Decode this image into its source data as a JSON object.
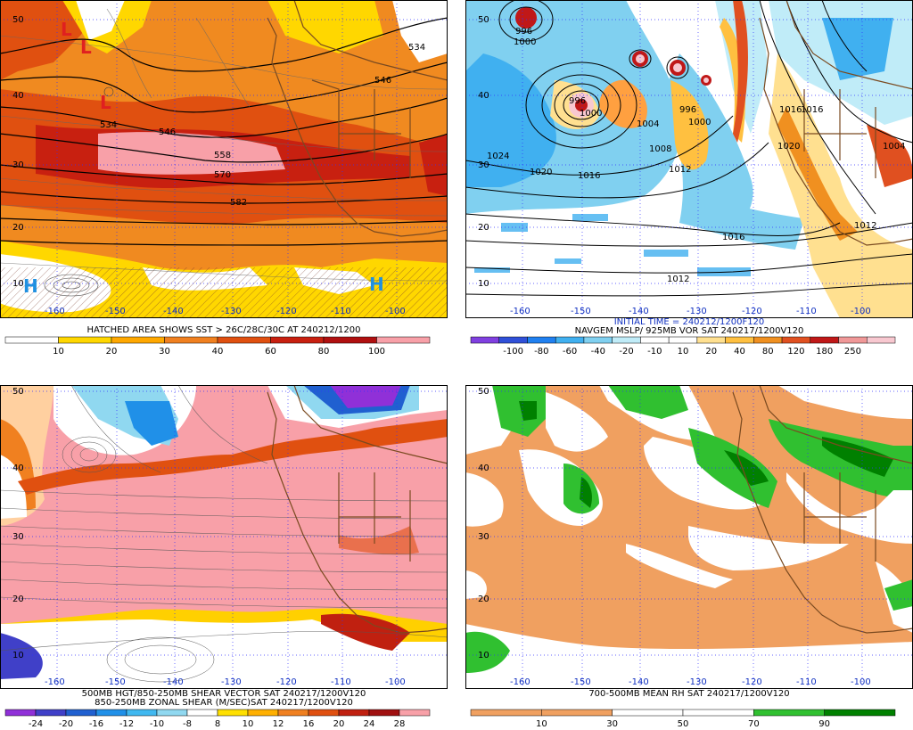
{
  "panels": [
    {
      "id": "tl",
      "caption_lines": [
        "HATCHED AREA SHOWS SST > 26C/28C/30C AT 240212/1200"
      ],
      "colorbar": {
        "colors": [
          "#ffffff",
          "#ffd700",
          "#ffa800",
          "#f08020",
          "#e05010",
          "#c82010",
          "#b01010",
          "#f8a0a8"
        ],
        "labels": [
          "10",
          "20",
          "30",
          "40",
          "60",
          "80",
          "100"
        ]
      },
      "contour_labels": [
        "534",
        "546",
        "534",
        "546",
        "558",
        "570",
        "582"
      ],
      "pressure_centers": [
        "L",
        "L",
        "L",
        "H",
        "H"
      ],
      "lat_labels": [
        "50",
        "40",
        "30",
        "20",
        "10"
      ],
      "lon_labels": [
        "-160",
        "-150",
        "-140",
        "-130",
        "-120",
        "-110",
        "-100"
      ]
    },
    {
      "id": "tr",
      "caption_lines": [
        "INITIAL TIME = 240212/1200F120",
        "NAVGEM MSLP/ 925MB VOR SAT 240217/1200V120"
      ],
      "colorbar": {
        "colors": [
          "#8040e0",
          "#3050d8",
          "#2080f0",
          "#40b0f0",
          "#80d0f0",
          "#c0ecf8",
          "#ffffff",
          "#ffffff",
          "#ffe090",
          "#ffc040",
          "#f09020",
          "#e05020",
          "#c01818",
          "#f09898",
          "#f8c8d0"
        ],
        "labels": [
          "-100",
          "-80",
          "-60",
          "-40",
          "-20",
          "-10",
          "10",
          "20",
          "40",
          "80",
          "120",
          "180",
          "250"
        ]
      },
      "contour_labels": [
        "996",
        "1000",
        "996",
        "1000",
        "996",
        "1004",
        "1000",
        "1008",
        "1012",
        "1016",
        "1020",
        "1024",
        "1016",
        "1012",
        "1012",
        "1016",
        "1016",
        "1020",
        "1004"
      ],
      "lat_labels": [
        "50",
        "40",
        "30",
        "20",
        "10"
      ],
      "lon_labels": [
        "-160",
        "-150",
        "-140",
        "-130",
        "-120",
        "-110",
        "-100"
      ]
    },
    {
      "id": "bl",
      "caption_lines": [
        "500MB HGT/850-250MB SHEAR VECTOR SAT 240217/1200V120",
        "850-250MB ZONAL SHEAR (M/SEC)SAT 240217/1200V120"
      ],
      "colorbar": {
        "colors": [
          "#9030d8",
          "#4040c8",
          "#2060d0",
          "#2090e8",
          "#40b8f0",
          "#90d8f0",
          "#ffffff",
          "#ffe000",
          "#ffb000",
          "#f08020",
          "#e05010",
          "#c02010",
          "#a01010",
          "#f8a0a8"
        ],
        "labels": [
          "-24",
          "-20",
          "-16",
          "-12",
          "-10",
          "-8",
          "8",
          "10",
          "12",
          "16",
          "20",
          "24",
          "28"
        ]
      },
      "lat_labels": [
        "50",
        "40",
        "30",
        "20",
        "10"
      ],
      "lon_labels": [
        "-160",
        "-150",
        "-140",
        "-130",
        "-120",
        "-110",
        "-100"
      ]
    },
    {
      "id": "br",
      "caption_lines": [
        "700-500MB MEAN RH SAT 240217/1200V120"
      ],
      "colorbar": {
        "colors": [
          "#f0a060",
          "#f0a060",
          "#ffffff",
          "#ffffff",
          "#30c030",
          "#008000"
        ],
        "labels": [
          "10",
          "30",
          "50",
          "70",
          "90"
        ]
      },
      "lat_labels": [
        "50",
        "40",
        "30",
        "20",
        "10"
      ],
      "lon_labels": [
        "-160",
        "-150",
        "-140",
        "-130",
        "-120",
        "-110",
        "-100"
      ]
    }
  ]
}
